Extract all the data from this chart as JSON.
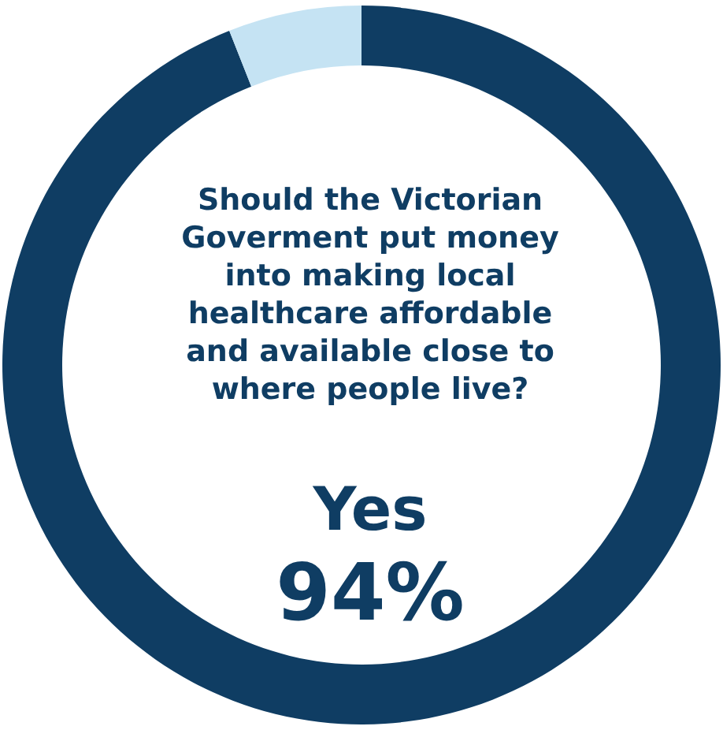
{
  "chart_data": {
    "type": "donut",
    "categories": [
      "Yes",
      null
    ],
    "values": [
      94,
      6
    ],
    "colors": [
      "#0f3d63",
      "#c5e3f3"
    ],
    "value_labels": [
      "94%",
      null
    ],
    "annotations": [
      "Should the Victorian Goverment put money into making local healthcare affordable and available close to where people live?"
    ],
    "legend": false
  }
}
